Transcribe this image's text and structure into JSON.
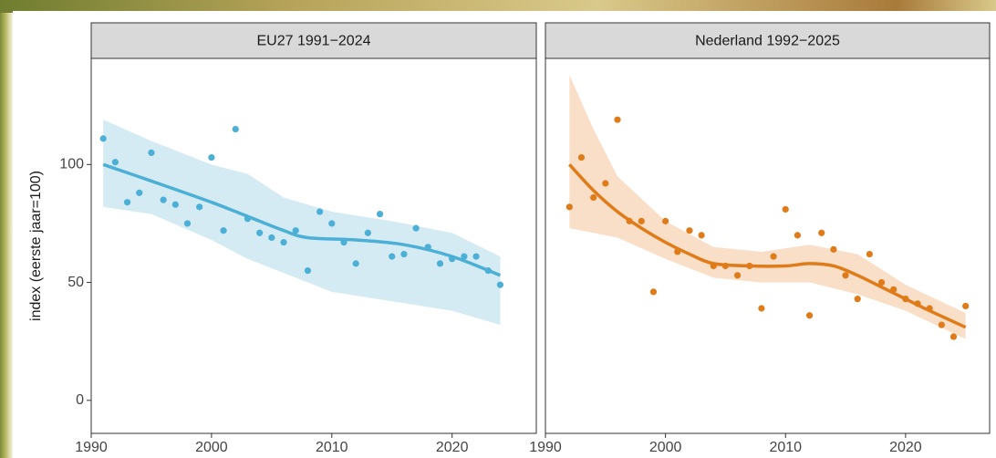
{
  "chart_data": [
    {
      "type": "scatter",
      "title": "EU27 1991−2024",
      "y_label": "index (eerste jaar=100)",
      "color": "#4bafd6",
      "band_color": "#d5ebf4",
      "x": [
        1991,
        1992,
        1993,
        1994,
        1995,
        1996,
        1997,
        1998,
        1999,
        2000,
        2001,
        2002,
        2003,
        2004,
        2005,
        2006,
        2007,
        2008,
        2009,
        2010,
        2011,
        2012,
        2013,
        2014,
        2015,
        2016,
        2017,
        2018,
        2019,
        2020,
        2021,
        2022,
        2023,
        2024
      ],
      "values": [
        111,
        101,
        84,
        88,
        105,
        85,
        83,
        75,
        82,
        103,
        72,
        115,
        77,
        71,
        69,
        67,
        72,
        55,
        80,
        75,
        67,
        58,
        71,
        79,
        61,
        62,
        73,
        65,
        58,
        60,
        61,
        61,
        55,
        49
      ],
      "trend": {
        "x": [
          1991,
          1995,
          2000,
          2003,
          2006,
          2008,
          2012,
          2016,
          2020,
          2024
        ],
        "values": [
          100,
          93,
          84,
          78,
          72,
          69,
          68,
          66,
          61,
          53
        ]
      },
      "band": {
        "x": [
          1991,
          1995,
          2000,
          2003,
          2006,
          2010,
          2015,
          2020,
          2024
        ],
        "lower": [
          82,
          79,
          68,
          60,
          54,
          46,
          42,
          38,
          32
        ],
        "upper": [
          119,
          110,
          100,
          96,
          86,
          80,
          76,
          71,
          61
        ]
      },
      "xlim": [
        1990,
        2027
      ],
      "xticks": [
        1990,
        2000,
        2010,
        2020
      ],
      "ylim": [
        -14,
        145
      ],
      "yticks": [
        0,
        50,
        100
      ]
    },
    {
      "type": "scatter",
      "title": "Nederland 1992−2025",
      "color": "#e07b1a",
      "band_color": "#f9dfc8",
      "x": [
        1992,
        1993,
        1994,
        1995,
        1996,
        1997,
        1998,
        1999,
        2000,
        2001,
        2002,
        2003,
        2004,
        2005,
        2006,
        2007,
        2008,
        2009,
        2010,
        2011,
        2012,
        2013,
        2014,
        2015,
        2016,
        2017,
        2018,
        2019,
        2020,
        2021,
        2022,
        2023,
        2024,
        2025
      ],
      "values": [
        82,
        103,
        86,
        92,
        119,
        76,
        76,
        46,
        76,
        63,
        72,
        70,
        57,
        57,
        53,
        57,
        39,
        61,
        81,
        70,
        36,
        71,
        64,
        53,
        43,
        62,
        50,
        47,
        43,
        41,
        39,
        32,
        27,
        40
      ],
      "trend": {
        "x": [
          1992,
          1994,
          1996,
          1998,
          2000,
          2002,
          2004,
          2007,
          2010,
          2012,
          2014,
          2016,
          2018,
          2020,
          2022,
          2025
        ],
        "values": [
          100,
          89,
          80,
          73,
          67,
          62,
          58,
          57,
          57,
          58,
          57,
          53,
          48,
          43,
          38,
          31
        ]
      },
      "band": {
        "x": [
          1992,
          1994,
          1996,
          2000,
          2004,
          2008,
          2012,
          2016,
          2020,
          2025
        ],
        "lower": [
          73,
          71,
          69,
          60,
          52,
          50,
          50,
          45,
          38,
          26
        ],
        "upper": [
          138,
          115,
          95,
          76,
          65,
          63,
          66,
          62,
          49,
          37
        ]
      },
      "xlim": [
        1990,
        2027
      ],
      "xticks": [
        1990,
        2000,
        2010,
        2020
      ],
      "ylim": [
        -14,
        145
      ]
    }
  ]
}
